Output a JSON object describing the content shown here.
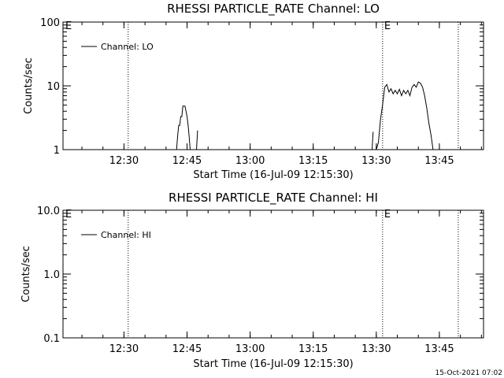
{
  "footer_timestamp": "15-Oct-2021 07:02",
  "chart_data": [
    {
      "type": "line",
      "title": "RHESSI PARTICLE_RATE Channel: LO",
      "xlabel": "Start Time (16-Jul-09 12:15:30)",
      "ylabel": "Counts/sec",
      "x_ticks": [
        "12:30",
        "12:45",
        "13:00",
        "13:15",
        "13:30",
        "13:45"
      ],
      "y_ticks": [
        "1",
        "10",
        "100"
      ],
      "y_scale": "log",
      "ylim": [
        1,
        100
      ],
      "xlim": [
        "12:15:30",
        "13:55:30"
      ],
      "legend": {
        "label": "Channel: LO",
        "position": "top-left"
      },
      "markers": [
        {
          "time": "12:31:00",
          "label": ""
        },
        {
          "time": "13:31:30",
          "label": "E"
        },
        {
          "time": "13:49:30",
          "label": ""
        }
      ],
      "edge_labels": [
        {
          "position": "left",
          "label": "E"
        }
      ],
      "series": [
        {
          "name": "Channel: LO",
          "segments": [
            [
              [
                "12:42:30",
                1.0
              ],
              [
                "12:42:45",
                1.6
              ],
              [
                "12:43:00",
                2.4
              ],
              [
                "12:43:15",
                2.4
              ],
              [
                "12:43:30",
                3.3
              ],
              [
                "12:43:45",
                3.3
              ],
              [
                "12:44:00",
                4.8
              ],
              [
                "12:44:30",
                4.8
              ],
              [
                "12:44:45",
                4.0
              ],
              [
                "12:45:00",
                3.3
              ],
              [
                "12:45:15",
                2.4
              ],
              [
                "12:45:30",
                1.6
              ],
              [
                "12:45:45",
                1.0
              ]
            ],
            [
              [
                "12:47:15",
                1.0
              ],
              [
                "12:47:30",
                2.0
              ]
            ],
            [
              [
                "13:29:00",
                1.0
              ],
              [
                "13:29:15",
                1.9
              ]
            ],
            [
              [
                "13:30:00",
                1.0
              ],
              [
                "13:30:30",
                1.3
              ],
              [
                "13:31:00",
                3.0
              ],
              [
                "13:31:30",
                5.0
              ],
              [
                "13:32:00",
                9.5
              ],
              [
                "13:32:30",
                10.5
              ],
              [
                "13:33:00",
                8.0
              ],
              [
                "13:33:30",
                9.0
              ],
              [
                "13:34:00",
                7.5
              ],
              [
                "13:34:30",
                8.5
              ],
              [
                "13:35:00",
                7.5
              ],
              [
                "13:35:30",
                8.8
              ],
              [
                "13:36:00",
                7.0
              ],
              [
                "13:36:30",
                8.5
              ],
              [
                "13:37:00",
                7.5
              ],
              [
                "13:37:30",
                8.5
              ],
              [
                "13:38:00",
                7.0
              ],
              [
                "13:38:30",
                9.5
              ],
              [
                "13:39:00",
                10.5
              ],
              [
                "13:39:30",
                9.5
              ],
              [
                "13:40:00",
                11.5
              ],
              [
                "13:40:30",
                11.0
              ],
              [
                "13:41:00",
                9.5
              ],
              [
                "13:41:30",
                7.0
              ],
              [
                "13:42:00",
                4.5
              ],
              [
                "13:42:30",
                2.6
              ],
              [
                "13:43:00",
                1.7
              ],
              [
                "13:43:30",
                1.0
              ]
            ]
          ]
        }
      ]
    },
    {
      "type": "line",
      "title": "RHESSI PARTICLE_RATE Channel: HI",
      "xlabel": "Start Time (16-Jul-09 12:15:30)",
      "ylabel": "Counts/sec",
      "x_ticks": [
        "12:30",
        "12:45",
        "13:00",
        "13:15",
        "13:30",
        "13:45"
      ],
      "y_ticks": [
        "0.1",
        "1.0",
        "10.0"
      ],
      "y_scale": "log",
      "ylim": [
        0.1,
        10
      ],
      "xlim": [
        "12:15:30",
        "13:55:30"
      ],
      "legend": {
        "label": "Channel: HI",
        "position": "top-left"
      },
      "markers": [
        {
          "time": "12:31:00",
          "label": ""
        },
        {
          "time": "13:31:30",
          "label": "E"
        },
        {
          "time": "13:49:30",
          "label": ""
        }
      ],
      "edge_labels": [
        {
          "position": "left",
          "label": "E"
        }
      ],
      "series": [
        {
          "name": "Channel: HI",
          "segments": []
        }
      ]
    }
  ]
}
